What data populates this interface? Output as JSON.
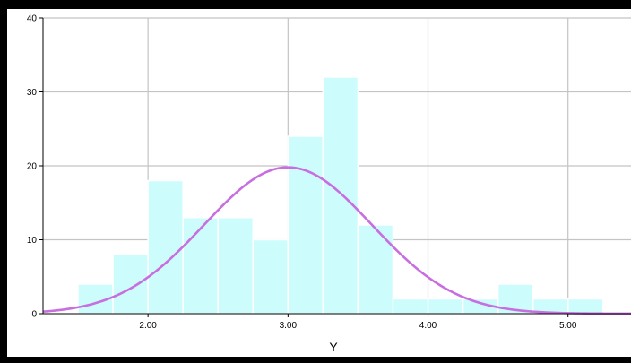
{
  "chart_data": {
    "type": "bar",
    "title": "",
    "xlabel": "Y",
    "ylabel": "",
    "xlim": [
      1.25,
      5.45
    ],
    "ylim": [
      0,
      40
    ],
    "grid": true,
    "x_ticks": [
      {
        "value": 2.0,
        "label": "2.00"
      },
      {
        "value": 3.0,
        "label": "3.00"
      },
      {
        "value": 4.0,
        "label": "4.00"
      },
      {
        "value": 5.0,
        "label": "5.00"
      }
    ],
    "y_ticks": [
      {
        "value": 0,
        "label": "0"
      },
      {
        "value": 10,
        "label": "10"
      },
      {
        "value": 20,
        "label": "20"
      },
      {
        "value": 30,
        "label": "30"
      },
      {
        "value": 40,
        "label": "40"
      }
    ],
    "bin_width": 0.25,
    "bins": [
      {
        "start": 1.5,
        "count": 4
      },
      {
        "start": 1.75,
        "count": 8
      },
      {
        "start": 2.0,
        "count": 18
      },
      {
        "start": 2.25,
        "count": 13
      },
      {
        "start": 2.5,
        "count": 13
      },
      {
        "start": 2.75,
        "count": 10
      },
      {
        "start": 3.0,
        "count": 24
      },
      {
        "start": 3.25,
        "count": 32
      },
      {
        "start": 3.5,
        "count": 12
      },
      {
        "start": 3.75,
        "count": 2
      },
      {
        "start": 4.0,
        "count": 2
      },
      {
        "start": 4.25,
        "count": 2
      },
      {
        "start": 4.5,
        "count": 4
      },
      {
        "start": 4.75,
        "count": 2
      },
      {
        "start": 5.0,
        "count": 2
      }
    ],
    "normal_curve": {
      "mean": 3.0,
      "peak": 19.8,
      "sd": 0.6
    },
    "colors": {
      "bar_fill": "#ccfcfc",
      "bar_stroke": "#ffffff",
      "curve": "#c86ee0",
      "grid": "#c4c4c4",
      "axis": "#000000"
    }
  }
}
